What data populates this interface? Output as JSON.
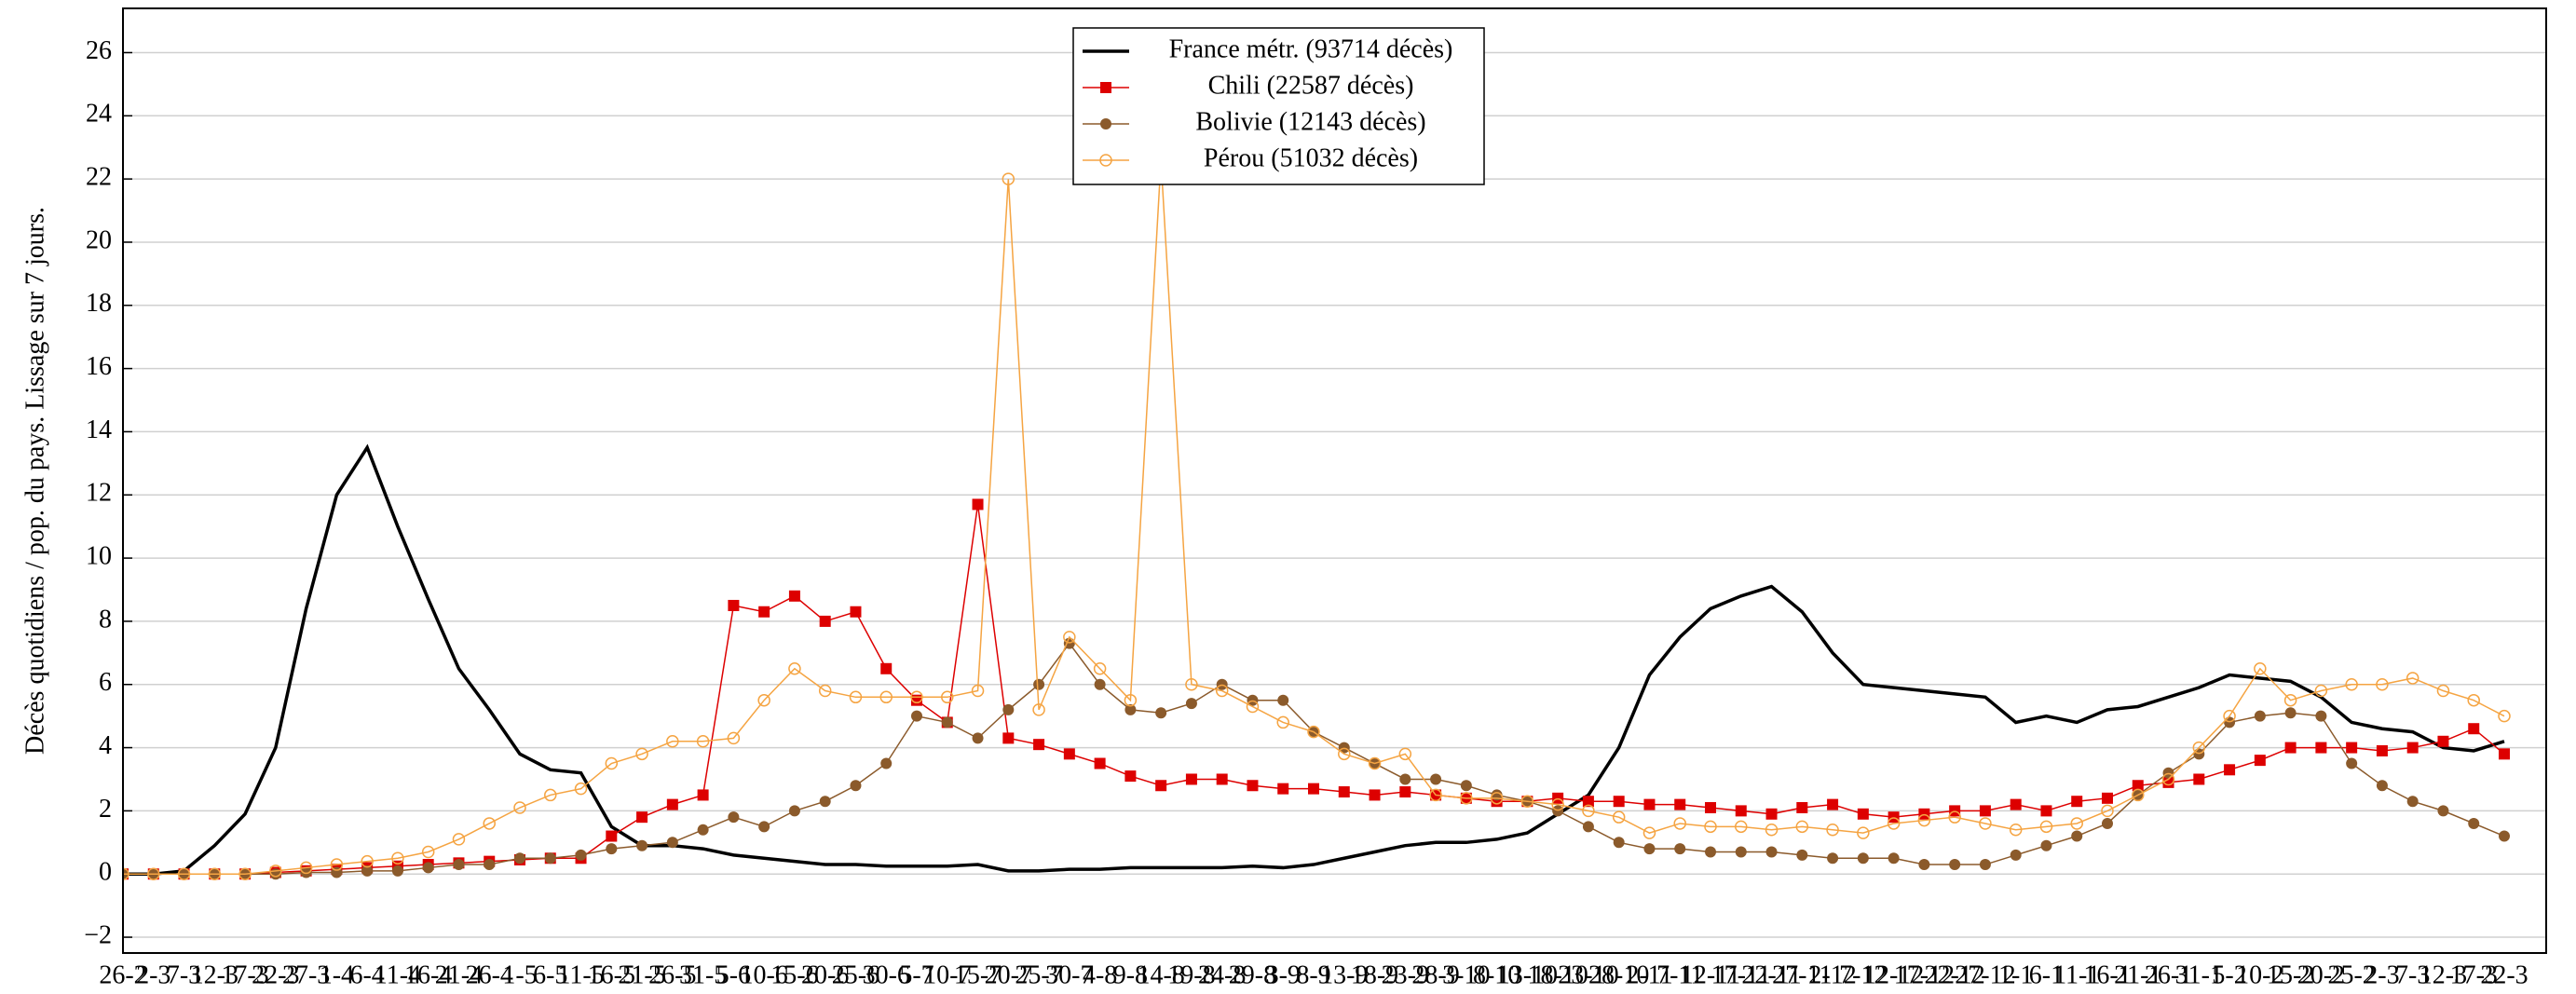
{
  "chart_data": {
    "type": "line",
    "y_label": "Décès quotidiens / pop. du pays. Lissage sur 7 jours.",
    "x": [
      "26-2",
      "2-3",
      "7-3",
      "12-3",
      "17-3",
      "22-3",
      "27-3",
      "1-4",
      "6-4",
      "11-4",
      "16-4",
      "21-4",
      "26-4",
      "1-5",
      "6-5",
      "11-5",
      "16-5",
      "21-5",
      "26-5",
      "31-5",
      "5-6",
      "10-6",
      "15-6",
      "20-6",
      "25-6",
      "30-6",
      "5-7",
      "10-7",
      "15-7",
      "20-7",
      "25-7",
      "30-7",
      "4-8",
      "9-8",
      "14-8",
      "19-8",
      "24-8",
      "29-8",
      "3-9",
      "8-9",
      "13-9",
      "18-9",
      "23-9",
      "28-9",
      "3-10",
      "8-10",
      "13-10",
      "18-10",
      "23-10",
      "28-10",
      "2-11",
      "7-11",
      "12-11",
      "17-11",
      "22-11",
      "27-11",
      "2-12",
      "7-12",
      "12-12",
      "17-12",
      "22-12",
      "27-12",
      "1-1",
      "6-1",
      "11-1",
      "16-1",
      "21-1",
      "26-1",
      "31-1",
      "5-2",
      "10-2",
      "15-2",
      "20-2",
      "25-2",
      "2-3",
      "7-3",
      "12-3",
      "17-3",
      "22-3"
    ],
    "series": [
      {
        "name": "France métr. (93714 décès)",
        "color": "#000000",
        "marker": "none",
        "line_width": 3.5,
        "values": [
          0,
          0,
          0.1,
          0.9,
          1.9,
          4,
          8.4,
          12,
          13.5,
          11,
          8.7,
          6.5,
          5.2,
          3.8,
          3.3,
          3.2,
          1.5,
          0.9,
          0.9,
          0.8,
          0.6,
          0.5,
          0.4,
          0.3,
          0.3,
          0.25,
          0.25,
          0.25,
          0.3,
          0.1,
          0.1,
          0.15,
          0.15,
          0.2,
          0.2,
          0.2,
          0.2,
          0.25,
          0.2,
          0.3,
          0.5,
          0.7,
          0.9,
          1.0,
          1.0,
          1.1,
          1.3,
          1.9,
          2.5,
          4,
          6.3,
          7.5,
          8.4,
          8.8,
          9.1,
          8.3,
          7.0,
          6.0,
          5.9,
          5.8,
          5.7,
          5.6,
          4.8,
          5.0,
          4.8,
          5.2,
          5.3,
          5.6,
          5.9,
          6.3,
          6.2,
          6.1,
          5.6,
          4.8,
          4.6,
          4.5,
          4.0,
          3.9,
          4.2
        ]
      },
      {
        "name": "Chili (22587 décès)",
        "color": "#dd0000",
        "marker": "square",
        "line_width": 1.5,
        "values": [
          0,
          0,
          0,
          0,
          0,
          0.05,
          0.1,
          0.15,
          0.2,
          0.25,
          0.3,
          0.35,
          0.4,
          0.45,
          0.5,
          0.5,
          1.2,
          1.8,
          2.2,
          2.5,
          8.5,
          8.3,
          8.8,
          8.0,
          8.3,
          6.5,
          5.5,
          4.8,
          11.7,
          4.3,
          4.1,
          3.8,
          3.5,
          3.1,
          2.8,
          3.0,
          3.0,
          2.8,
          2.7,
          2.7,
          2.6,
          2.5,
          2.6,
          2.5,
          2.4,
          2.3,
          2.3,
          2.4,
          2.3,
          2.3,
          2.2,
          2.2,
          2.1,
          2.0,
          1.9,
          2.1,
          2.2,
          1.9,
          1.8,
          1.9,
          2.0,
          2.0,
          2.2,
          2.0,
          2.3,
          2.4,
          2.8,
          2.9,
          3.0,
          3.3,
          3.6,
          4.0,
          4.0,
          4.0,
          3.9,
          4.0,
          4.2,
          4.6,
          3.8
        ]
      },
      {
        "name": "Bolivie (12143 décès)",
        "color": "#8b5a2b",
        "marker": "circle",
        "line_width": 1.5,
        "values": [
          0,
          0,
          0,
          0,
          0,
          0,
          0.05,
          0.05,
          0.1,
          0.1,
          0.2,
          0.3,
          0.3,
          0.5,
          0.5,
          0.6,
          0.8,
          0.9,
          1.0,
          1.4,
          1.8,
          1.5,
          2.0,
          2.3,
          2.8,
          3.5,
          5.0,
          4.8,
          4.3,
          5.2,
          6.0,
          7.3,
          6.0,
          5.2,
          5.1,
          5.4,
          6.0,
          5.5,
          5.5,
          4.5,
          4.0,
          3.5,
          3.0,
          3.0,
          2.8,
          2.5,
          2.3,
          2.0,
          1.5,
          1.0,
          0.8,
          0.8,
          0.7,
          0.7,
          0.7,
          0.6,
          0.5,
          0.5,
          0.5,
          0.3,
          0.3,
          0.3,
          0.6,
          0.9,
          1.2,
          1.6,
          2.5,
          3.2,
          3.8,
          4.8,
          5.0,
          5.1,
          5.0,
          3.5,
          2.8,
          2.3,
          2.0,
          1.6,
          1.2
        ]
      },
      {
        "name": "Pérou (51032 décès)",
        "color": "#f5a442",
        "marker": "open-circle",
        "line_width": 1.5,
        "values": [
          0,
          0,
          0,
          0,
          0,
          0.1,
          0.2,
          0.3,
          0.4,
          0.5,
          0.7,
          1.1,
          1.6,
          2.1,
          2.5,
          2.7,
          3.5,
          3.8,
          4.2,
          4.2,
          4.3,
          5.5,
          6.5,
          5.8,
          5.6,
          5.6,
          5.6,
          5.6,
          5.8,
          22.0,
          5.2,
          7.5,
          6.5,
          5.5,
          22.6,
          6.0,
          5.8,
          5.3,
          4.8,
          4.5,
          3.8,
          3.5,
          3.8,
          2.5,
          2.4,
          2.4,
          2.3,
          2.2,
          2.0,
          1.8,
          1.3,
          1.6,
          1.5,
          1.5,
          1.4,
          1.5,
          1.4,
          1.3,
          1.6,
          1.7,
          1.8,
          1.6,
          1.4,
          1.5,
          1.6,
          2.0,
          2.5,
          3.0,
          4.0,
          5.0,
          6.5,
          5.5,
          5.8,
          6.0,
          6.0,
          6.2,
          5.8,
          5.5,
          5.0
        ]
      }
    ],
    "ylim": [
      -2.5,
      27.4
    ],
    "yticks": [
      {
        "value": -2,
        "label": "−2"
      },
      0,
      2,
      4,
      6,
      8,
      10,
      12,
      14,
      16,
      18,
      20,
      22,
      24,
      26
    ],
    "grid": true,
    "legend": "top-center"
  }
}
